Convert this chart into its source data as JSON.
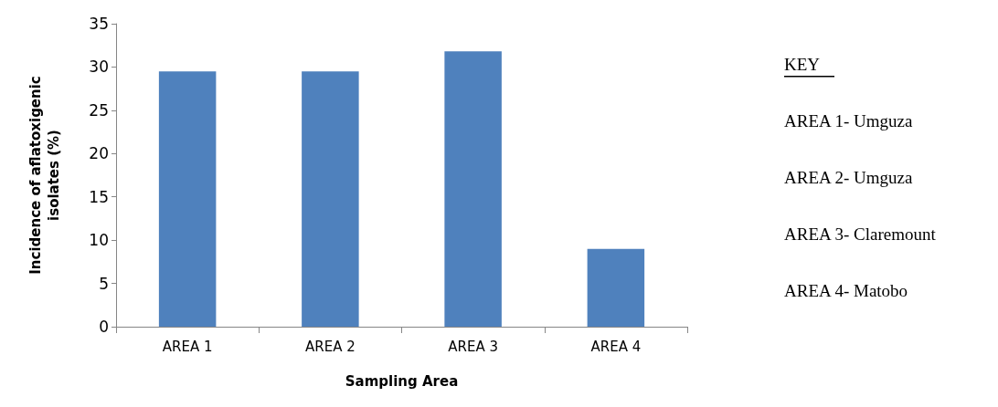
{
  "chart_data": {
    "type": "bar",
    "xlabel": "Sampling Area",
    "ylabel": "Incidence of aflatoxigenic\nisolates (%)",
    "categories": [
      "AREA 1",
      "AREA 2",
      "AREA 3",
      "AREA 4"
    ],
    "values": [
      29.5,
      29.5,
      31.8,
      9.0
    ],
    "color": "#4f81bd",
    "ylim": [
      0,
      35
    ],
    "yticks": [
      0,
      5,
      10,
      15,
      20,
      25,
      30,
      35
    ],
    "grid": false,
    "annotations": [
      "KEY",
      "AREA 1- Umguza",
      "AREA 2- Umguza",
      "AREA 3- Claremount",
      "AREA 4- Matobo"
    ]
  }
}
